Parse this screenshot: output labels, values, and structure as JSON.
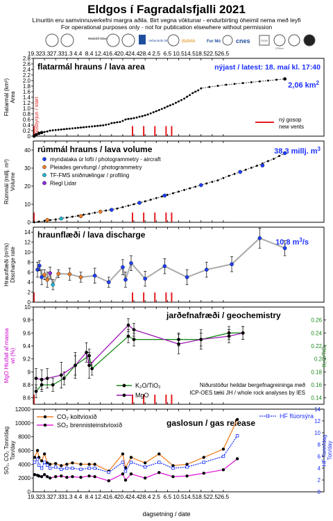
{
  "header": {
    "title": "Eldgos í Fagradalsfjalli 2021",
    "subtitle1": "Línuritin eru samvinnuverkefni margra aðila.  Birt vegna vöktunar - endurbirting óheimil nema með leyfi",
    "subtitle2": "For operational purposes only - not for publication elsewhere without permission",
    "logos": [
      "Háskóli Íslands",
      "Veðurstofa Íslands",
      "ISAVIA",
      "For Mó",
      "cnes",
      "ÍSOR",
      "ISTerre"
    ]
  },
  "dates": [
    "19.3",
    "23.3",
    "27.3",
    "31.3",
    "4.4",
    "8.4",
    "12.4",
    "16.4",
    "20.4",
    "24.4",
    "28.4",
    "2.5",
    "6.5",
    "10.5",
    "14.5",
    "18.5",
    "22.5",
    "26.5"
  ],
  "x_axis_label": "dagsetning / date",
  "new_vents": [
    35.5,
    39.5,
    43.5,
    47.5,
    49.5
  ],
  "new_vents_legend": [
    "ný gosop",
    "new vents"
  ],
  "colors": {
    "area_series": "#000000",
    "vents": "#e41a1c",
    "aircraft": "#1f3fff",
    "pleiades": "#f07f2a",
    "tf_fms": "#20b7d0",
    "riegl": "#8a2be2",
    "discharge_line": "#aaaaaa",
    "k2o": "#1a8a1a",
    "mgo": "#9b17b4",
    "co2": "#ef7f22",
    "so2": "#e020d8",
    "hf": "#1a2fff",
    "mgo_axis": "#cc00cc"
  },
  "chart_data": [
    {
      "type": "scatter",
      "title": "flatarmál hrauns / lava area",
      "annotation": "nýjast / latest: 18. maí kl. 17:40",
      "latest_value": "2,06 km",
      "latest_unit_sup": "2",
      "ylabel": "Flatarmál (km²)",
      "ylabel2": "Area",
      "start_label": "gosbyrjun / start",
      "ylim": [
        0,
        2.8
      ],
      "yticks": [
        "0",
        "0.2",
        "0.4",
        "0.6",
        "0.8",
        "1.0",
        "1.2",
        "1.4",
        "1.6",
        "1.8",
        "2.0",
        "2.2",
        "2.4",
        "2.6",
        "2.8"
      ],
      "x": [
        0.3,
        1,
        2,
        3,
        4,
        5,
        6,
        7,
        8,
        9,
        10,
        11,
        12,
        13,
        14,
        15,
        16,
        17,
        18,
        19,
        20,
        21,
        22,
        23,
        24,
        25,
        26,
        27,
        28,
        29,
        30,
        31,
        32,
        33,
        34,
        35,
        36,
        37,
        38,
        39,
        40,
        41,
        42,
        43,
        44,
        45,
        46,
        47,
        48,
        49,
        50,
        51,
        52,
        53,
        54,
        55,
        56,
        57,
        58,
        59,
        60
      ],
      "y": [
        0.0,
        0.05,
        0.1,
        0.13,
        0.15,
        0.17,
        0.2,
        0.21,
        0.22,
        0.23,
        0.24,
        0.25,
        0.26,
        0.27,
        0.28,
        0.29,
        0.3,
        0.31,
        0.32,
        0.33,
        0.34,
        0.35,
        0.36,
        0.37,
        0.38,
        0.39,
        0.41,
        0.43,
        0.47,
        0.48,
        0.5,
        0.51,
        0.55,
        0.6,
        0.62,
        0.63,
        0.65,
        0.67,
        0.7,
        0.72,
        0.75,
        0.78,
        0.82,
        0.86,
        0.9,
        0.94,
        0.98,
        1.02,
        1.07,
        1.11,
        1.15,
        1.2,
        1.25,
        1.3,
        1.35,
        1.42,
        1.48,
        1.55,
        1.6,
        1.65,
        1.72
      ],
      "extra_x": [
        63,
        66,
        69,
        72,
        75,
        78,
        81,
        84,
        87,
        90
      ],
      "extra_y": [
        1.77,
        1.81,
        1.85,
        1.88,
        1.91,
        1.94,
        1.97,
        2.0,
        2.03,
        2.06
      ]
    },
    {
      "type": "scatter",
      "title": "rúmmál hrauns / lava volume",
      "latest_value": "38,3 millj. m",
      "latest_unit_sup": "3",
      "ylabel": "Rúmmál (millj. m³)",
      "ylabel2": "Volume",
      "ylim": [
        0,
        45
      ],
      "yticks": [
        "0",
        "10",
        "20",
        "30",
        "40"
      ],
      "legend": [
        "myndataka úr lofti  /  photogrammetry - aircraft",
        "Pleiades gervitungl  /  photogrammetry",
        "TF-FMS sniðmælingar  /  profiling",
        "Riegl Lidar"
      ],
      "x": [
        0.3,
        2,
        4,
        6,
        8,
        10,
        12,
        14,
        16,
        18,
        20,
        22,
        24,
        26,
        28,
        30,
        32,
        34,
        36,
        38,
        40,
        42,
        44,
        46,
        48,
        50,
        52,
        54,
        56,
        58,
        60,
        62,
        64,
        66,
        68,
        70,
        72,
        74,
        76,
        78,
        80,
        82,
        84,
        86,
        88,
        90
      ],
      "y": [
        0,
        0.4,
        0.8,
        1.2,
        1.6,
        2.1,
        2.6,
        3.1,
        3.6,
        4.2,
        4.7,
        5.3,
        5.9,
        6.5,
        7.1,
        7.6,
        8.4,
        9.2,
        10,
        10.8,
        11.6,
        12.5,
        13.4,
        14.3,
        15.2,
        16.1,
        17,
        17.9,
        18.8,
        19.7,
        20.6,
        21.5,
        22.4,
        23.2,
        24.5,
        25.7,
        26.8,
        27.9,
        29.1,
        30.2,
        31.3,
        32.6,
        33.9,
        35.1,
        36.7,
        38.3
      ],
      "colored_points": [
        {
          "x": 5,
          "y": 1.3,
          "kind": "pleiades"
        },
        {
          "x": 10,
          "y": 2.1,
          "kind": "tf_fms"
        },
        {
          "x": 17,
          "y": 3.4,
          "kind": "pleiades"
        },
        {
          "x": 24,
          "y": 5.9,
          "kind": "pleiades"
        },
        {
          "x": 28,
          "y": 6.9,
          "kind": "aircraft"
        },
        {
          "x": 38,
          "y": 10.8,
          "kind": "aircraft"
        },
        {
          "x": 47,
          "y": 14.8,
          "kind": "aircraft"
        },
        {
          "x": 60,
          "y": 20.6,
          "kind": "aircraft"
        },
        {
          "x": 74,
          "y": 27.9,
          "kind": "aircraft"
        },
        {
          "x": 82,
          "y": 31.5,
          "kind": "aircraft"
        },
        {
          "x": 90,
          "y": 38.3,
          "kind": "aircraft"
        }
      ]
    },
    {
      "type": "line",
      "title": "hraunflæði / lava discharge",
      "latest_value": "10,8 m",
      "latest_unit_sup": "3",
      "latest_unit_suffix": "/s",
      "ylabel": "Hraunflæði (m³/s)",
      "ylabel2": "Discharge rate",
      "ylim": [
        0,
        15
      ],
      "yticks": [
        "0",
        "2",
        "4",
        "6",
        "8",
        "10",
        "12",
        "14"
      ],
      "points": [
        {
          "x": 1.5,
          "y": 6.5,
          "err": 1.5,
          "kind": "aircraft"
        },
        {
          "x": 2.2,
          "y": 7.3,
          "err": 1.0,
          "kind": "aircraft"
        },
        {
          "x": 3.0,
          "y": 5.0,
          "err": 1.5,
          "kind": "aircraft"
        },
        {
          "x": 4.0,
          "y": 5.5,
          "err": 1.0,
          "kind": "pleiades"
        },
        {
          "x": 5.0,
          "y": 4.5,
          "err": 1.5,
          "kind": "pleiades"
        },
        {
          "x": 6.0,
          "y": 5.8,
          "err": 1.2,
          "kind": "riegl"
        },
        {
          "x": 7.0,
          "y": 3.5,
          "err": 1.0,
          "kind": "tf_fms"
        },
        {
          "x": 9.0,
          "y": 5.7,
          "err": 0.8,
          "kind": "pleiades"
        },
        {
          "x": 13.0,
          "y": 5.6,
          "err": 1.2,
          "kind": "pleiades"
        },
        {
          "x": 17.0,
          "y": 5.0,
          "err": 1.0,
          "kind": "pleiades"
        },
        {
          "x": 22.0,
          "y": 5.3,
          "err": 1.5,
          "kind": "aircraft"
        },
        {
          "x": 27.0,
          "y": 4.0,
          "err": 1.0,
          "kind": "aircraft"
        },
        {
          "x": 32.0,
          "y": 7.0,
          "err": 1.5,
          "kind": "aircraft"
        },
        {
          "x": 33.0,
          "y": 4.5,
          "err": 1.5,
          "kind": "aircraft"
        },
        {
          "x": 35.0,
          "y": 7.8,
          "err": 1.5,
          "kind": "aircraft"
        },
        {
          "x": 40.0,
          "y": 4.7,
          "err": 1.5,
          "kind": "aircraft"
        },
        {
          "x": 47.0,
          "y": 7.2,
          "err": 1.5,
          "kind": "aircraft"
        },
        {
          "x": 55.0,
          "y": 5.0,
          "err": 1.5,
          "kind": "aircraft"
        },
        {
          "x": 62.0,
          "y": 6.5,
          "err": 1.5,
          "kind": "aircraft"
        },
        {
          "x": 71.0,
          "y": 7.6,
          "err": 1.5,
          "kind": "aircraft"
        },
        {
          "x": 81.0,
          "y": 12.8,
          "err": 2.0,
          "kind": "aircraft"
        },
        {
          "x": 90.0,
          "y": 10.8,
          "err": 1.5,
          "kind": "aircraft"
        }
      ]
    },
    {
      "type": "line",
      "title": "jarðefnafræði / geochemistry",
      "ylabel": "MgO Hlutfall af massa",
      "ylabel2": "wt (%)",
      "y2label": "K₂O/TiO₂",
      "ylim": [
        8.5,
        10.0
      ],
      "yticks": [
        "8.6",
        "8.8",
        "9",
        "9.2",
        "9.4",
        "9.6",
        "9.8",
        "10"
      ],
      "y2lim": [
        0.13,
        0.28
      ],
      "y2ticks": [
        "0.14",
        "0.16",
        "0.18",
        "0.2",
        "0.22",
        "0.24",
        "0.26"
      ],
      "note": [
        "Niðurstöður heildar bergefnagreininga með",
        "ICP-OES tæki JH / whole rock analyses by IES"
      ],
      "series": [
        {
          "name": "K₂O/TiO₂",
          "x": [
            1,
            3,
            7,
            11,
            15,
            20,
            21,
            34,
            36,
            52,
            60,
            70,
            75
          ],
          "y": [
            0.15,
            0.16,
            0.16,
            0.17,
            0.19,
            0.205,
            0.185,
            0.235,
            0.23,
            0.23,
            0.23,
            0.24,
            0.24
          ],
          "err": [
            0.01,
            0.01,
            0.01,
            0.01,
            0.015,
            0.01,
            0.01,
            0.01,
            0.01,
            0.01,
            0.01,
            0.01,
            0.01
          ]
        },
        {
          "name": "MgO",
          "x": [
            1,
            3,
            5,
            10,
            15,
            19,
            20,
            34,
            36,
            52,
            60,
            70,
            75
          ],
          "y": [
            8.9,
            8.88,
            8.9,
            8.95,
            9.1,
            9.3,
            9.1,
            9.72,
            9.65,
            9.43,
            9.5,
            9.55,
            9.6
          ],
          "err": [
            0.15,
            0.15,
            0.15,
            0.2,
            0.2,
            0.15,
            0.2,
            0.1,
            0.1,
            0.15,
            0.15,
            0.1,
            0.1
          ]
        }
      ]
    },
    {
      "type": "line",
      "title": "gaslosun / gas release",
      "ylabel": "SO₂, CO₂ Tonn/dag",
      "ylabel2": "Ton/day",
      "y2label": "HF Tonn/dag",
      "y2label2": "Ton/day",
      "ylim": [
        0,
        12000
      ],
      "yticks": [
        "0",
        "2000",
        "4000",
        "6000",
        "8000",
        "10000",
        "12000"
      ],
      "y2lim": [
        0,
        14
      ],
      "y2ticks": [
        "0",
        "2",
        "4",
        "6",
        "8",
        "10",
        "12",
        "14"
      ],
      "series": [
        {
          "name": "CO₂ koltvíoxíð",
          "x": [
            0.5,
            1.5,
            2,
            3,
            4,
            5,
            6,
            8,
            10,
            12,
            14,
            17,
            20,
            22,
            27,
            32,
            33,
            35,
            40,
            45,
            50,
            55,
            61,
            68,
            73
          ],
          "y": [
            5000,
            6000,
            5000,
            4500,
            5500,
            4200,
            4000,
            4100,
            3800,
            4000,
            4200,
            4000,
            4000,
            4000,
            3000,
            5500,
            3500,
            5000,
            4200,
            5500,
            3800,
            4000,
            5000,
            6200,
            10500
          ]
        },
        {
          "name": "SO₂ brennisteinstvíoxíð",
          "x": [
            0.5,
            1.5,
            2,
            3,
            4,
            5,
            6,
            8,
            10,
            12,
            14,
            17,
            20,
            22,
            27,
            32,
            33,
            35,
            40,
            45,
            50,
            55,
            61,
            68,
            73
          ],
          "y": [
            2500,
            2400,
            2300,
            2200,
            2500,
            2200,
            2000,
            2200,
            2300,
            2100,
            2200,
            2100,
            2300,
            2200,
            1600,
            2600,
            1700,
            2600,
            2000,
            2800,
            2200,
            2300,
            2700,
            3200,
            4800
          ]
        },
        {
          "name": "HF flúorsýra",
          "x": [
            0.5,
            1.5,
            2,
            3,
            4,
            5,
            6,
            8,
            10,
            12,
            14,
            17,
            20,
            22,
            27,
            32,
            33,
            35,
            40,
            45,
            50,
            55,
            61,
            68,
            73
          ],
          "y": [
            5,
            5.5,
            4.5,
            4,
            5,
            4.5,
            4,
            4.2,
            3.8,
            4,
            4,
            3.8,
            4,
            4,
            3.3,
            5,
            3.5,
            5,
            4.2,
            5,
            4,
            4.2,
            5,
            6,
            9.5
          ]
        }
      ]
    }
  ]
}
